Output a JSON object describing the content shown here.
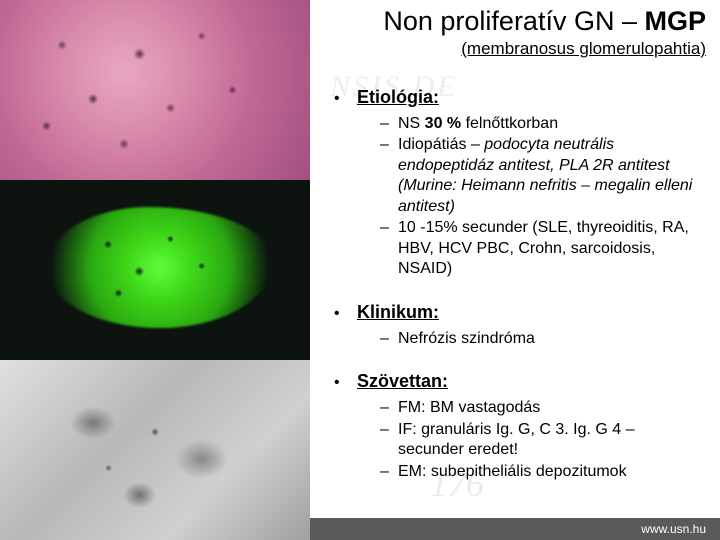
{
  "title": {
    "main_prefix": "Non proliferatív GN – ",
    "main_bold": "MGP",
    "sub": "(membranosus glomerulopahtia)"
  },
  "sections": [
    {
      "heading": "Etiológia:",
      "items": [
        {
          "prefix": "NS ",
          "bold": "30 %",
          "suffix": " felnőttkorban"
        },
        {
          "text": "Idiopátiás – ",
          "italic": "podocyta neutrális endopeptidáz antitest, PLA 2R antitest (Murine: Heimann nefritis – megalin elleni antitest)"
        },
        {
          "text": "10 -15% secunder (SLE, thyreoiditis, RA, HBV, HCV PBC, Crohn, sarcoidosis, NSAID)"
        }
      ]
    },
    {
      "heading": "Klinikum:",
      "items": [
        {
          "text": "Nefrózis szindróma"
        }
      ]
    },
    {
      "heading": "Szövettan:",
      "items": [
        {
          "text": "FM: BM vastagodás"
        },
        {
          "text": "IF: granuláris Ig. G, C 3. Ig. G 4 – secunder eredet!"
        },
        {
          "text": "EM: subepitheliális depozitumok"
        }
      ]
    }
  ],
  "footer": {
    "url": "www.usn.hu"
  },
  "watermark": {
    "text1": "NSIS DE",
    "text2": "176"
  },
  "colors": {
    "footer_bg": "#5a5a5a",
    "footer_text": "#ffffff",
    "text": "#000000"
  }
}
